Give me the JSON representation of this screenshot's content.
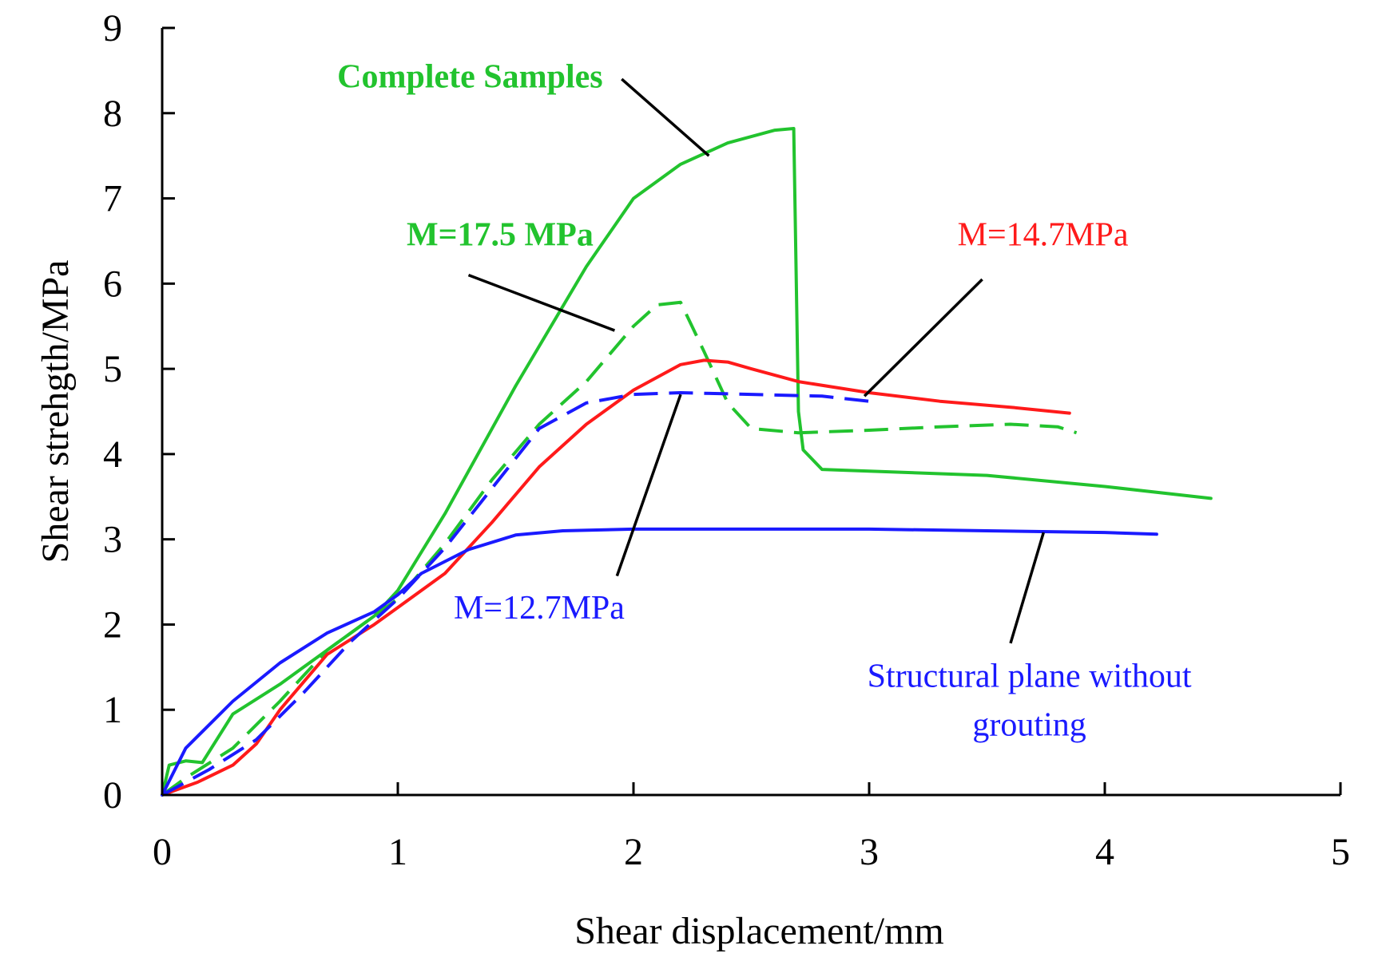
{
  "chart_data": {
    "type": "line",
    "title": "",
    "xlabel": "Shear displacement/mm",
    "ylabel": "Shear strehgth/MPa",
    "xlim": [
      0,
      5
    ],
    "ylim": [
      0,
      9
    ],
    "xticks": [
      "0",
      "1",
      "2",
      "3",
      "4",
      "5"
    ],
    "yticks": [
      "0",
      "1",
      "2",
      "3",
      "4",
      "5",
      "6",
      "7",
      "8",
      "9"
    ],
    "grid": false,
    "legend": "none (direct annotations)",
    "series": [
      {
        "name": "Complete Samples",
        "color": "#22c32e",
        "dash": "solid",
        "x": [
          0,
          0.03,
          0.1,
          0.17,
          0.3,
          0.5,
          0.7,
          0.9,
          1.0,
          1.2,
          1.5,
          1.8,
          2.0,
          2.2,
          2.4,
          2.6,
          2.68,
          2.7,
          2.72,
          2.8,
          3.0,
          3.5,
          4.0,
          4.45
        ],
        "y": [
          0,
          0.35,
          0.4,
          0.38,
          0.95,
          1.3,
          1.7,
          2.1,
          2.4,
          3.3,
          4.8,
          6.2,
          7.0,
          7.4,
          7.65,
          7.8,
          7.82,
          4.5,
          4.05,
          3.82,
          3.8,
          3.75,
          3.62,
          3.48
        ]
      },
      {
        "name": "M=17.5 MPa",
        "color": "#22c32e",
        "dash": "dashed",
        "x": [
          0,
          0.1,
          0.3,
          0.5,
          0.7,
          0.9,
          1.0,
          1.2,
          1.4,
          1.6,
          1.8,
          2.0,
          2.1,
          2.2,
          2.3,
          2.4,
          2.5,
          2.7,
          3.0,
          3.3,
          3.6,
          3.8,
          3.88
        ],
        "y": [
          0,
          0.2,
          0.55,
          1.1,
          1.7,
          2.1,
          2.3,
          2.95,
          3.7,
          4.35,
          4.85,
          5.5,
          5.75,
          5.78,
          5.2,
          4.6,
          4.3,
          4.25,
          4.28,
          4.32,
          4.35,
          4.32,
          4.25
        ]
      },
      {
        "name": "M=14.7MPa",
        "color": "#ff1a1a",
        "dash": "solid",
        "x": [
          0,
          0.15,
          0.3,
          0.4,
          0.5,
          0.7,
          0.9,
          1.0,
          1.2,
          1.4,
          1.6,
          1.8,
          2.0,
          2.2,
          2.3,
          2.4,
          2.5,
          2.7,
          3.0,
          3.3,
          3.6,
          3.85
        ],
        "y": [
          0,
          0.15,
          0.35,
          0.6,
          1.0,
          1.65,
          2.0,
          2.2,
          2.6,
          3.2,
          3.85,
          4.35,
          4.75,
          5.05,
          5.1,
          5.08,
          5.0,
          4.85,
          4.72,
          4.62,
          4.55,
          4.48
        ]
      },
      {
        "name": "M=12.7MPa",
        "color": "#1a1aff",
        "dash": "dashed",
        "x": [
          0,
          0.2,
          0.4,
          0.6,
          0.8,
          1.0,
          1.2,
          1.4,
          1.6,
          1.8,
          2.0,
          2.2,
          2.5,
          2.8,
          3.0
        ],
        "y": [
          0,
          0.3,
          0.65,
          1.2,
          1.8,
          2.3,
          2.9,
          3.6,
          4.3,
          4.6,
          4.7,
          4.72,
          4.7,
          4.68,
          4.62
        ]
      },
      {
        "name": "Structural plane without grouting",
        "color": "#1a1aff",
        "dash": "solid",
        "x": [
          0,
          0.1,
          0.3,
          0.5,
          0.7,
          0.9,
          1.0,
          1.1,
          1.3,
          1.5,
          1.7,
          2.0,
          2.5,
          3.0,
          3.5,
          4.0,
          4.22
        ],
        "y": [
          0,
          0.55,
          1.1,
          1.55,
          1.9,
          2.15,
          2.35,
          2.6,
          2.88,
          3.05,
          3.1,
          3.12,
          3.12,
          3.12,
          3.1,
          3.08,
          3.06
        ]
      }
    ],
    "annotations": [
      {
        "text": "Complete Samples",
        "color": "#22c32e",
        "bold": true,
        "anchor": "end",
        "text_at": [
          1.87,
          8.3
        ],
        "line": [
          [
            1.95,
            8.4
          ],
          [
            2.32,
            7.5
          ]
        ]
      },
      {
        "text": "M=17.5 MPa",
        "color": "#22c32e",
        "bold": true,
        "anchor": "end",
        "text_at": [
          1.83,
          6.45
        ],
        "line": [
          [
            1.3,
            6.1
          ],
          [
            1.92,
            5.45
          ]
        ]
      },
      {
        "text": "M=14.7MPa",
        "color": "#ff1a1a",
        "bold": false,
        "anchor": "end",
        "text_at": [
          4.1,
          6.45
        ],
        "line": [
          [
            3.48,
            6.05
          ],
          [
            2.98,
            4.68
          ]
        ]
      },
      {
        "text": "M=12.7MPa",
        "color": "#1a1aff",
        "bold": false,
        "anchor": "middle",
        "text_at": [
          1.6,
          2.07
        ],
        "line": [
          [
            1.93,
            2.57
          ],
          [
            2.2,
            4.7
          ]
        ]
      },
      {
        "text": "Structural plane without",
        "color": "#1a1aff",
        "bold": false,
        "anchor": "middle",
        "text_at": [
          3.68,
          1.27
        ],
        "line": [
          [
            3.6,
            1.78
          ],
          [
            3.74,
            3.08
          ]
        ]
      },
      {
        "text": "grouting",
        "color": "#1a1aff",
        "bold": false,
        "anchor": "middle",
        "text_at": [
          3.68,
          0.7
        ]
      }
    ]
  }
}
